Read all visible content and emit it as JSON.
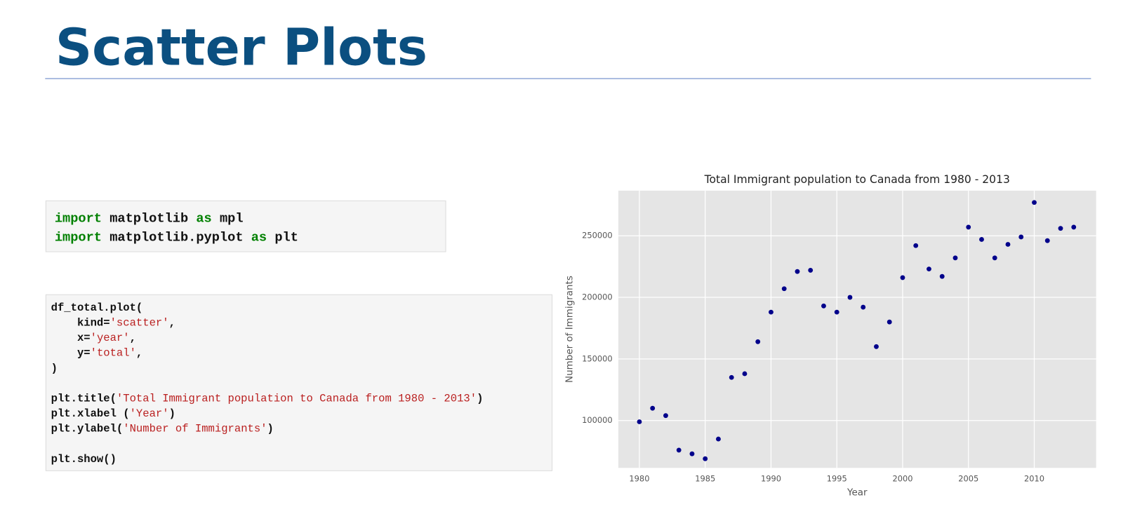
{
  "slide": {
    "title": "Scatter Plots"
  },
  "code_blocks": [
    {
      "lines": [
        [
          {
            "text": "import",
            "color": "#008000",
            "bold": true
          },
          " matplotlib ",
          {
            "text": "as",
            "color": "#008000",
            "bold": true
          },
          " mpl"
        ],
        [
          {
            "text": "import",
            "color": "#008000",
            "bold": true
          },
          " matplotlib.pyplot ",
          {
            "text": "as",
            "color": "#008000",
            "bold": true
          },
          " plt"
        ]
      ]
    },
    {
      "lines": [
        [
          "df_total.plot("
        ],
        [
          "    kind=",
          {
            "text": "'scatter'",
            "color": "#ba2121"
          },
          ","
        ],
        [
          "    x=",
          {
            "text": "'year'",
            "color": "#ba2121"
          },
          ","
        ],
        [
          "    y=",
          {
            "text": "'total'",
            "color": "#ba2121"
          },
          ","
        ],
        [
          ")"
        ],
        [],
        [
          "plt.title(",
          {
            "text": "'Total Immigrant population to Canada from 1980 - 2013'",
            "color": "#ba2121"
          },
          ")"
        ],
        [
          "plt.xlabel (",
          {
            "text": "'Year'",
            "color": "#ba2121"
          },
          ")"
        ],
        [
          "plt.ylabel(",
          {
            "text": "'Number of Immigrants'",
            "color": "#ba2121"
          },
          ")"
        ],
        [],
        [
          "plt.show()"
        ]
      ]
    }
  ],
  "chart_data": {
    "type": "scatter",
    "title": "Total Immigrant population to Canada from 1980 - 2013",
    "x_label": "Year",
    "y_label": "Number of Immigrants",
    "x": [
      1980,
      1981,
      1982,
      1983,
      1984,
      1985,
      1986,
      1987,
      1988,
      1989,
      1990,
      1991,
      1992,
      1993,
      1994,
      1995,
      1996,
      1997,
      1998,
      1999,
      2000,
      2001,
      2002,
      2003,
      2004,
      2005,
      2006,
      2007,
      2008,
      2009,
      2010,
      2011,
      2012,
      2013
    ],
    "values": [
      99000,
      110000,
      104000,
      76000,
      73000,
      69000,
      85000,
      135000,
      138000,
      164000,
      188000,
      207000,
      221000,
      222000,
      193000,
      188000,
      200000,
      192000,
      160000,
      180000,
      216000,
      242000,
      223000,
      217000,
      232000,
      257000,
      247000,
      232000,
      243000,
      249000,
      277000,
      246000,
      256000,
      257000
    ],
    "color": "#00008b",
    "xlim": [
      1978.4,
      2014.7
    ],
    "xticks": [
      1980,
      1985,
      1990,
      1995,
      2000,
      2005,
      2010
    ],
    "ylim": [
      61600,
      286600
    ],
    "yticks": [
      100000,
      150000,
      200000,
      250000
    ],
    "grid": true,
    "background": "#e5e5e5"
  }
}
